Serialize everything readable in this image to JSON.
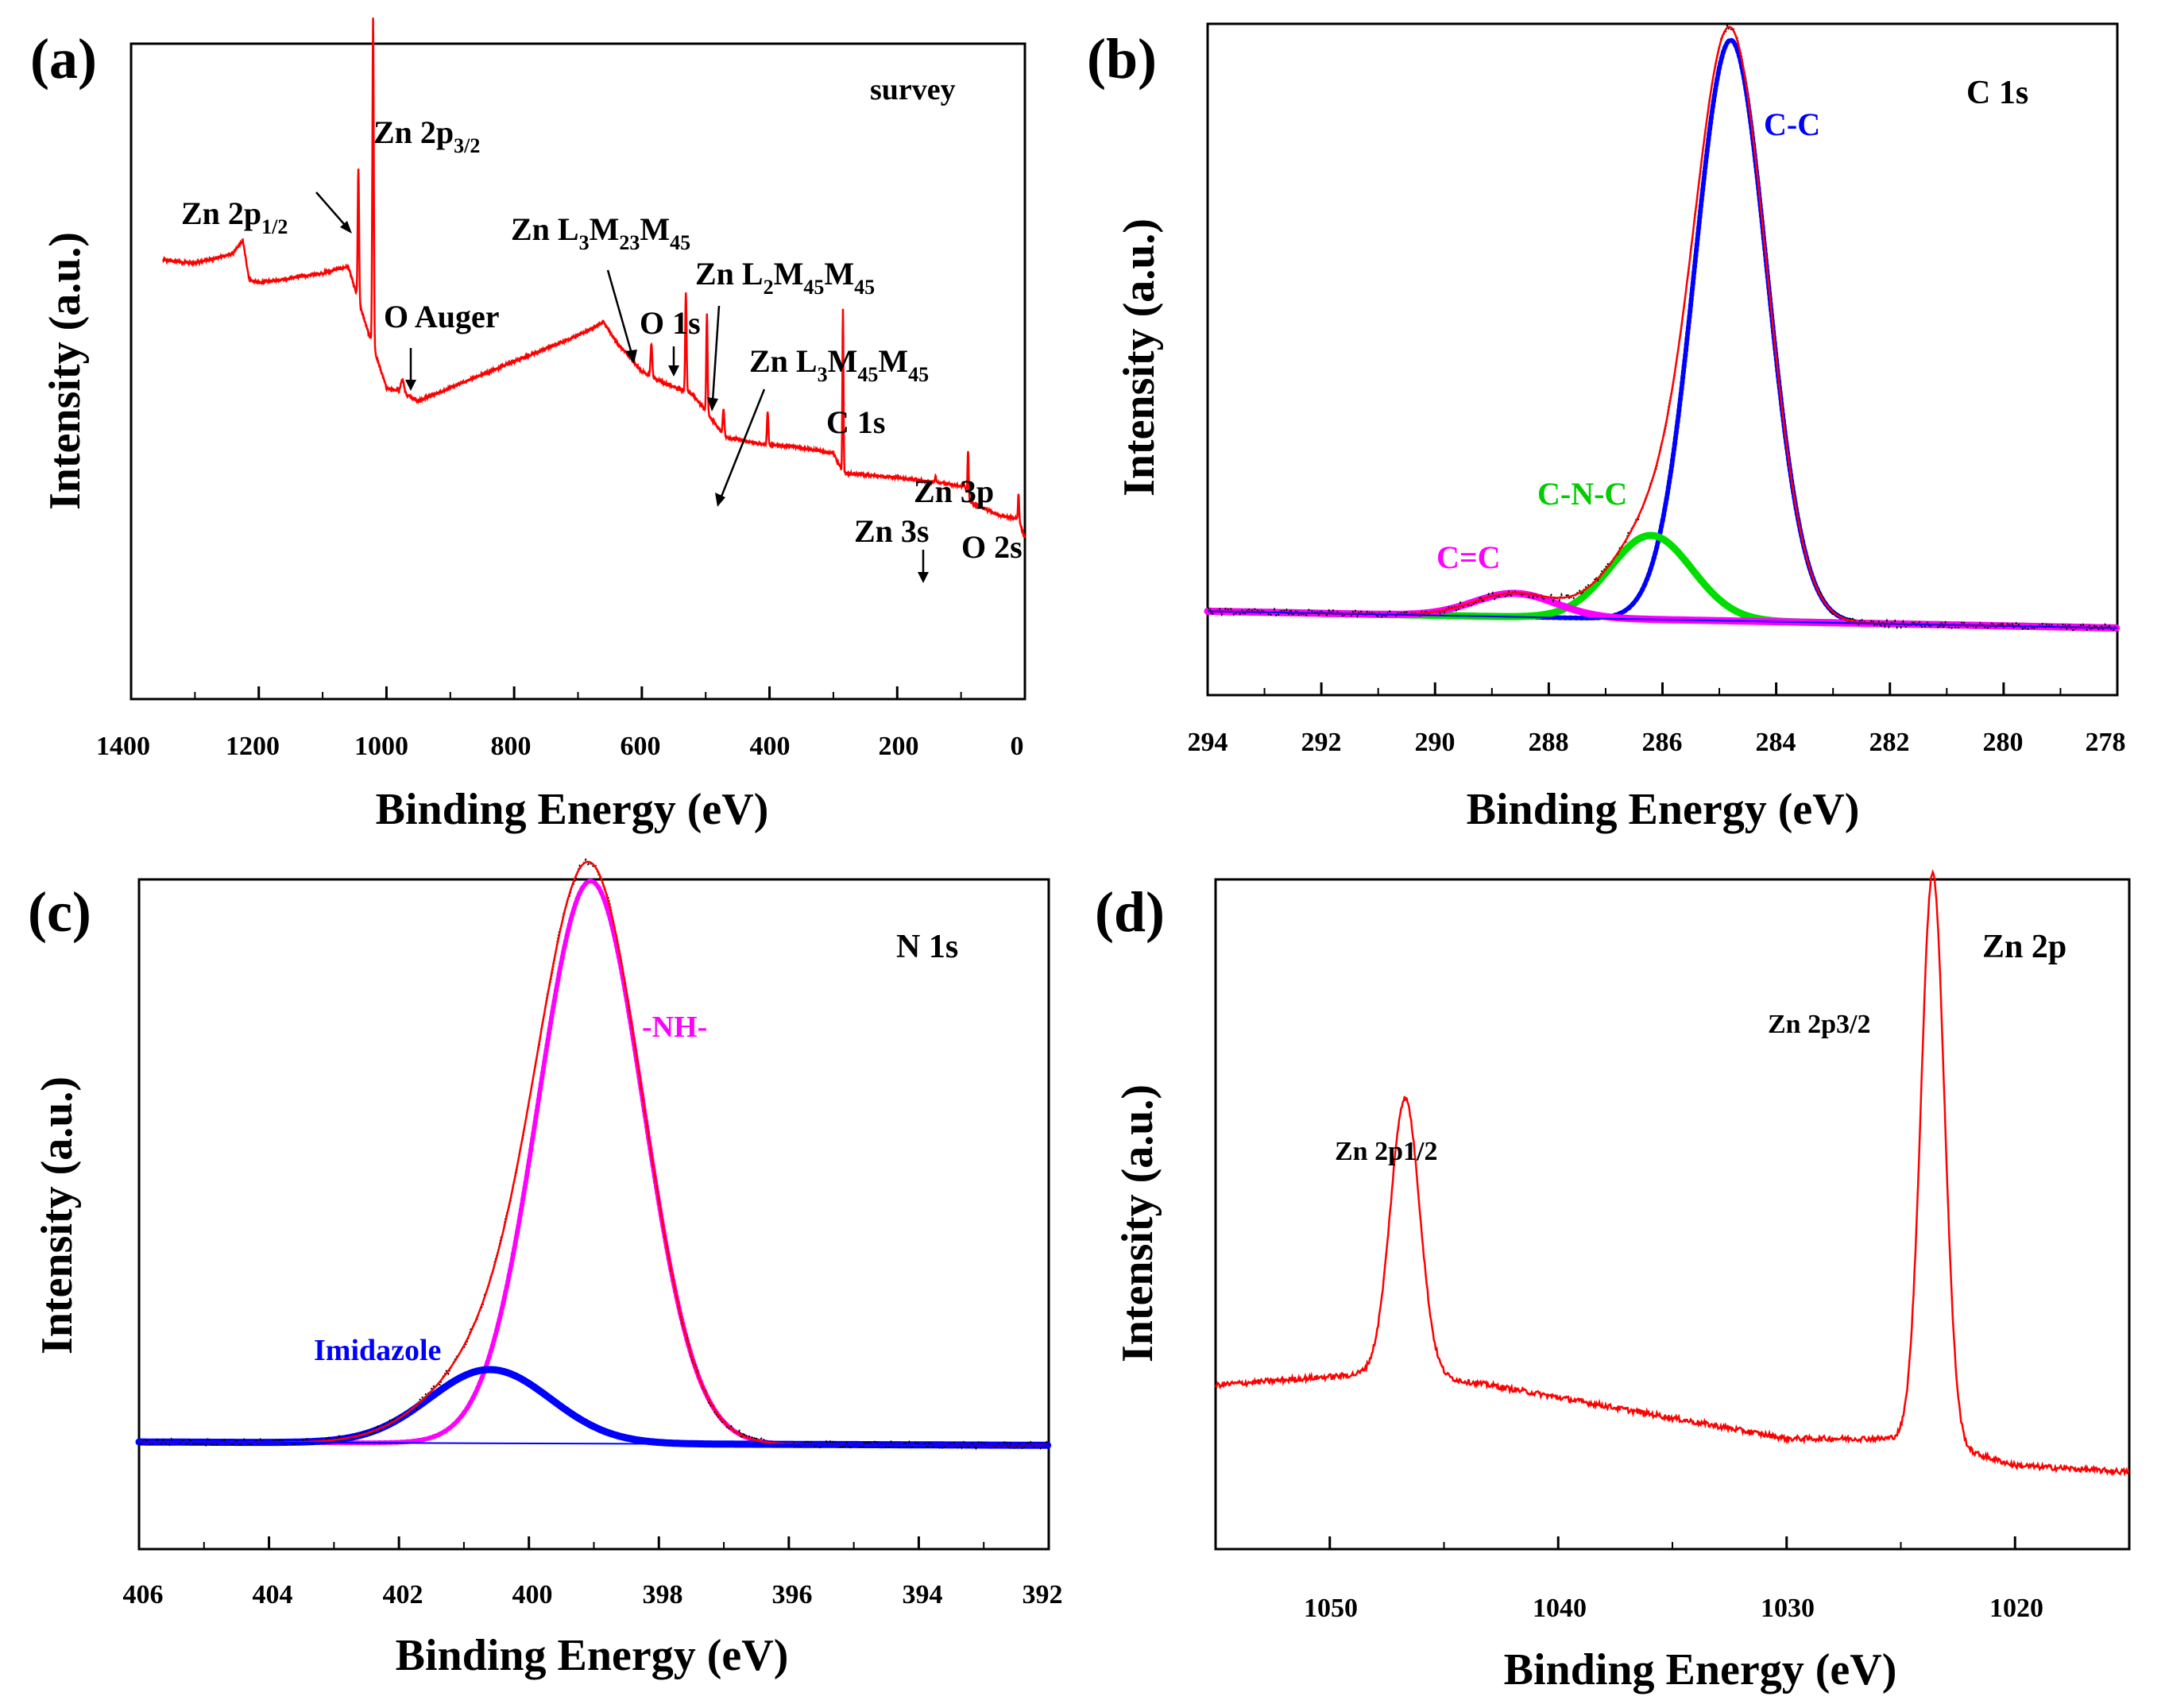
{
  "figure": {
    "ylabel": "Intensity (a.u.)",
    "xlabel": "Binding Energy (eV)"
  },
  "chart_data": [
    {
      "id": "a",
      "panel_label": "(a)",
      "type": "line",
      "title": "survey",
      "xlabel": "Binding Energy (eV)",
      "ylabel": "Intensity (a.u.)",
      "xlim": [
        1400,
        0
      ],
      "ylim": [
        0,
        1
      ],
      "xticks": [
        1400,
        1200,
        1000,
        800,
        600,
        400,
        200,
        0
      ],
      "series": [
        {
          "name": "survey",
          "color": "#ff0000",
          "baseline": [
            [
              1350,
              0.67
            ],
            [
              1300,
              0.665
            ],
            [
              1240,
              0.68
            ],
            [
              1225,
              0.7
            ],
            [
              1215,
              0.64
            ],
            [
              1200,
              0.635
            ],
            [
              1100,
              0.65
            ],
            [
              1060,
              0.66
            ],
            [
              1035,
              0.58
            ],
            [
              1000,
              0.475
            ],
            [
              980,
              0.47
            ],
            [
              950,
              0.455
            ],
            [
              900,
              0.475
            ],
            [
              800,
              0.515
            ],
            [
              700,
              0.555
            ],
            [
              660,
              0.575
            ],
            [
              640,
              0.545
            ],
            [
              600,
              0.5
            ],
            [
              560,
              0.48
            ],
            [
              520,
              0.465
            ],
            [
              470,
              0.4
            ],
            [
              420,
              0.39
            ],
            [
              360,
              0.385
            ],
            [
              300,
              0.375
            ],
            [
              285,
              0.345
            ],
            [
              200,
              0.338
            ],
            [
              120,
              0.328
            ],
            [
              95,
              0.325
            ],
            [
              85,
              0.3
            ],
            [
              40,
              0.28
            ],
            [
              10,
              0.275
            ],
            [
              0,
              0.245
            ]
          ],
          "peaks": [
            {
              "center": 1044,
              "height": 0.2,
              "width": 2.5
            },
            {
              "center": 1021,
              "height": 0.5,
              "width": 2.5
            },
            {
              "center": 975,
              "height": 0.02,
              "width": 6
            },
            {
              "center": 585,
              "height": 0.05,
              "width": 3
            },
            {
              "center": 531,
              "height": 0.15,
              "width": 2.5
            },
            {
              "center": 498,
              "height": 0.15,
              "width": 2.5
            },
            {
              "center": 472,
              "height": 0.04,
              "width": 3
            },
            {
              "center": 403,
              "height": 0.05,
              "width": 2.5
            },
            {
              "center": 285,
              "height": 0.25,
              "width": 2
            },
            {
              "center": 140,
              "height": 0.01,
              "width": 2
            },
            {
              "center": 89,
              "height": 0.07,
              "width": 2
            },
            {
              "center": 10,
              "height": 0.04,
              "width": 2
            }
          ]
        }
      ],
      "annotations": [
        {
          "text": "Zn 2p",
          "sub": "1/2"
        },
        {
          "text": "Zn 2p",
          "sub": "3/2"
        },
        {
          "text": "O Auger",
          "sub": ""
        },
        {
          "text": "Zn L",
          "sub": "3",
          "text2": "M",
          "sub2": "23",
          "text3": "M",
          "sub3": "45"
        },
        {
          "text": "O 1s",
          "sub": ""
        },
        {
          "text": "Zn L",
          "sub": "2",
          "text2": "M",
          "sub2": "45",
          "text3": "M",
          "sub3": "45"
        },
        {
          "text": "Zn L",
          "sub": "3",
          "text2": "M",
          "sub2": "45",
          "text3": "M",
          "sub3": "45"
        },
        {
          "text": "C 1s",
          "sub": ""
        },
        {
          "text": "Zn 3p",
          "sub": ""
        },
        {
          "text": "Zn 3s",
          "sub": ""
        },
        {
          "text": "O 2s",
          "sub": ""
        }
      ]
    },
    {
      "id": "b",
      "panel_label": "(b)",
      "type": "line",
      "title": "C 1s",
      "xlabel": "Binding Energy (eV)",
      "ylabel": "Intensity (a.u.)",
      "xlim": [
        294,
        278
      ],
      "ylim": [
        0,
        1
      ],
      "xticks": [
        294,
        292,
        290,
        288,
        286,
        284,
        282,
        280,
        278
      ],
      "baseline": [
        [
          294,
          0.125
        ],
        [
          278,
          0.1
        ]
      ],
      "components": [
        {
          "name": "C-C",
          "color": "#0000ff",
          "center": 284.8,
          "height": 0.865,
          "fwhm": 1.5
        },
        {
          "name": "C-N-C",
          "color": "#00dd00",
          "center": 286.2,
          "height": 0.125,
          "fwhm": 1.7
        },
        {
          "name": "C=C",
          "color": "#ff00ff",
          "center": 288.6,
          "height": 0.035,
          "fwhm": 1.7
        }
      ],
      "envelope_color": "#ff0000",
      "raw_color": "#000000",
      "labels": [
        "C-C",
        "C-N-C",
        "C=C"
      ]
    },
    {
      "id": "c",
      "panel_label": "(c)",
      "type": "line",
      "title": "N 1s",
      "xlabel": "Binding Energy (eV)",
      "ylabel": "Intensity (a.u.)",
      "xlim": [
        406,
        392
      ],
      "ylim": [
        0,
        1
      ],
      "xticks": [
        406,
        404,
        402,
        400,
        398,
        396,
        394,
        392
      ],
      "baseline": [
        [
          406,
          0.16
        ],
        [
          392,
          0.155
        ]
      ],
      "components": [
        {
          "name": "-NH-",
          "color": "#ff00ff",
          "center": 399.05,
          "height": 0.84,
          "fwhm": 1.9
        },
        {
          "name": "Imidazole",
          "color": "#0000ff",
          "center": 400.6,
          "height": 0.11,
          "fwhm": 2.2
        }
      ],
      "envelope_color": "#ff0000",
      "raw_color": "#000000",
      "labels": [
        "-NH-",
        "Imidazole"
      ]
    },
    {
      "id": "d",
      "panel_label": "(d)",
      "type": "line",
      "title": "Zn 2p",
      "xlabel": "Binding Energy (eV)",
      "ylabel": "Intensity (a.u.)",
      "xlim": [
        1055,
        1015
      ],
      "ylim": [
        0,
        1
      ],
      "xticks": [
        1050,
        1040,
        1030,
        1020
      ],
      "series": [
        {
          "name": "Zn 2p",
          "color": "#ff0000",
          "baseline": [
            [
              1055,
              0.245
            ],
            [
              1047,
              0.265
            ],
            [
              1043,
              0.245
            ],
            [
              1030,
              0.165
            ],
            [
              1024,
              0.165
            ],
            [
              1020,
              0.125
            ],
            [
              1015,
              0.115
            ]
          ],
          "peaks": [
            {
              "center": 1046.7,
              "height": 0.41,
              "fwhm": 1.5
            },
            {
              "center": 1023.6,
              "height": 0.85,
              "fwhm": 1.2
            }
          ]
        }
      ],
      "labels": [
        "Zn 2p1/2",
        "Zn 2p3/2"
      ]
    }
  ]
}
